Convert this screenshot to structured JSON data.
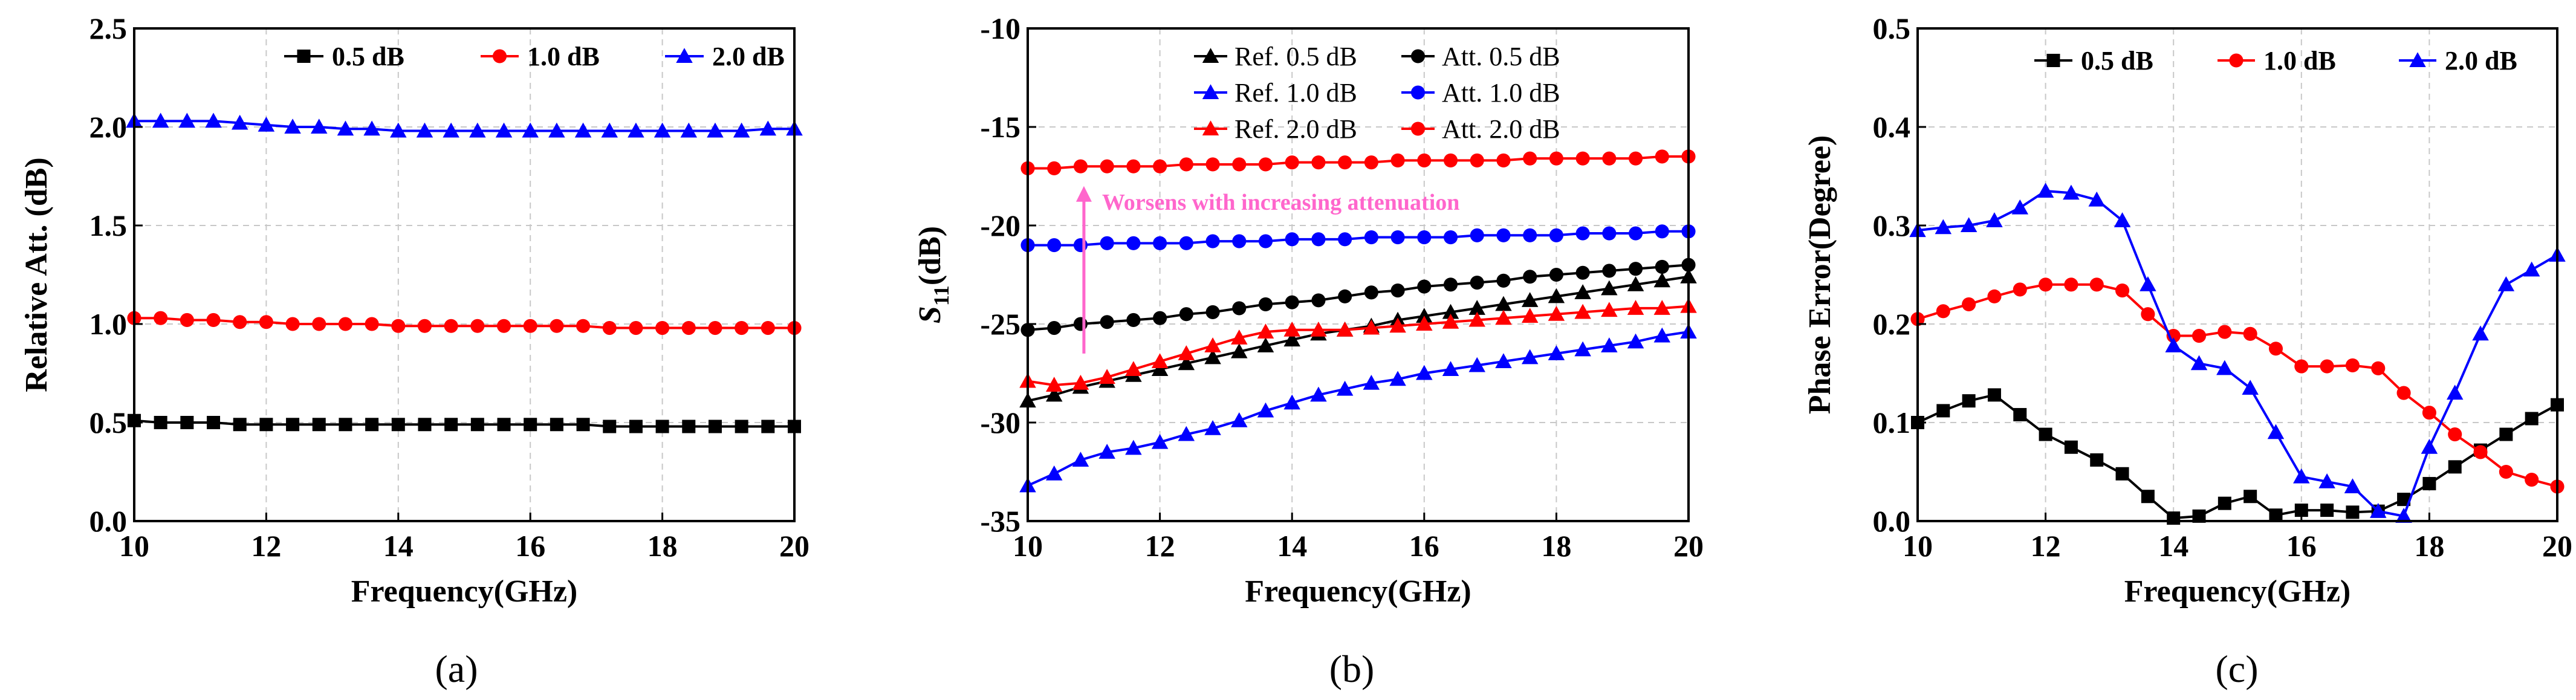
{
  "chart_data": [
    {
      "id": "a",
      "type": "line",
      "caption": "(a)",
      "title": "",
      "xlabel": "Frequency(GHz)",
      "ylabel": "Relative Att. (dB)",
      "xlim": [
        10,
        20
      ],
      "ylim": [
        0.0,
        2.5
      ],
      "xticks": [
        "10",
        "12",
        "14",
        "16",
        "18",
        "20"
      ],
      "yticks": [
        "0.0",
        "0.5",
        "1.0",
        "1.5",
        "2.0",
        "2.5"
      ],
      "grid": true,
      "legend": "top",
      "series": [
        {
          "name": "0.5 dB",
          "color": "#000000",
          "marker": "square",
          "x": [
            10,
            10.4,
            10.8,
            11.2,
            11.6,
            12,
            12.4,
            12.8,
            13.2,
            13.6,
            14,
            14.4,
            14.8,
            15.2,
            15.6,
            16,
            16.4,
            16.8,
            17.2,
            17.6,
            18,
            18.4,
            18.8,
            19.2,
            19.6,
            20
          ],
          "y": [
            0.51,
            0.5,
            0.5,
            0.5,
            0.49,
            0.49,
            0.49,
            0.49,
            0.49,
            0.49,
            0.49,
            0.49,
            0.49,
            0.49,
            0.49,
            0.49,
            0.49,
            0.49,
            0.48,
            0.48,
            0.48,
            0.48,
            0.48,
            0.48,
            0.48,
            0.48
          ]
        },
        {
          "name": "1.0 dB",
          "color": "#ff0000",
          "marker": "circle",
          "x": [
            10,
            10.4,
            10.8,
            11.2,
            11.6,
            12,
            12.4,
            12.8,
            13.2,
            13.6,
            14,
            14.4,
            14.8,
            15.2,
            15.6,
            16,
            16.4,
            16.8,
            17.2,
            17.6,
            18,
            18.4,
            18.8,
            19.2,
            19.6,
            20
          ],
          "y": [
            1.03,
            1.03,
            1.02,
            1.02,
            1.01,
            1.01,
            1.0,
            1.0,
            1.0,
            1.0,
            0.99,
            0.99,
            0.99,
            0.99,
            0.99,
            0.99,
            0.99,
            0.99,
            0.98,
            0.98,
            0.98,
            0.98,
            0.98,
            0.98,
            0.98,
            0.98
          ]
        },
        {
          "name": "2.0 dB",
          "color": "#0000ff",
          "marker": "triangle",
          "x": [
            10,
            10.4,
            10.8,
            11.2,
            11.6,
            12,
            12.4,
            12.8,
            13.2,
            13.6,
            14,
            14.4,
            14.8,
            15.2,
            15.6,
            16,
            16.4,
            16.8,
            17.2,
            17.6,
            18,
            18.4,
            18.8,
            19.2,
            19.6,
            20
          ],
          "y": [
            2.03,
            2.03,
            2.03,
            2.03,
            2.02,
            2.01,
            2.0,
            2.0,
            1.99,
            1.99,
            1.98,
            1.98,
            1.98,
            1.98,
            1.98,
            1.98,
            1.98,
            1.98,
            1.98,
            1.98,
            1.98,
            1.98,
            1.98,
            1.98,
            1.99,
            1.99
          ]
        }
      ]
    },
    {
      "id": "b",
      "type": "line",
      "caption": "(b)",
      "title": "",
      "xlabel": "Frequency(GHz)",
      "ylabel_main": "S",
      "ylabel_sub": "11",
      "ylabel_unit": "(dB)",
      "xlim": [
        10,
        20
      ],
      "ylim": [
        -35,
        -10
      ],
      "xticks": [
        "10",
        "12",
        "14",
        "16",
        "18",
        "20"
      ],
      "yticks": [
        "-35",
        "-30",
        "-25",
        "-20",
        "-15",
        "-10"
      ],
      "grid": true,
      "legend": "top-right",
      "annotation": {
        "text": "Worsens with increasing attenuation",
        "color": "#ff66cc",
        "x": 10.85,
        "y_from": -26.5,
        "y_to": -18.0
      },
      "series": [
        {
          "name": "Ref. 0.5 dB",
          "color": "#000000",
          "marker": "triangle",
          "x": [
            10,
            10.4,
            10.8,
            11.2,
            11.6,
            12,
            12.4,
            12.8,
            13.2,
            13.6,
            14,
            14.4,
            14.8,
            15.2,
            15.6,
            16,
            16.4,
            16.8,
            17.2,
            17.6,
            18,
            18.4,
            18.8,
            19.2,
            19.6,
            20
          ],
          "y": [
            -28.9,
            -28.6,
            -28.2,
            -27.9,
            -27.6,
            -27.3,
            -27.0,
            -26.7,
            -26.4,
            -26.1,
            -25.8,
            -25.5,
            -25.3,
            -25.1,
            -24.8,
            -24.6,
            -24.4,
            -24.2,
            -24.0,
            -23.8,
            -23.6,
            -23.4,
            -23.2,
            -23.0,
            -22.8,
            -22.6
          ]
        },
        {
          "name": "Att.  0.5 dB",
          "color": "#000000",
          "marker": "circle",
          "x": [
            10,
            10.4,
            10.8,
            11.2,
            11.6,
            12,
            12.4,
            12.8,
            13.2,
            13.6,
            14,
            14.4,
            14.8,
            15.2,
            15.6,
            16,
            16.4,
            16.8,
            17.2,
            17.6,
            18,
            18.4,
            18.8,
            19.2,
            19.6,
            20
          ],
          "y": [
            -25.3,
            -25.2,
            -25.0,
            -24.9,
            -24.8,
            -24.7,
            -24.5,
            -24.4,
            -24.2,
            -24.0,
            -23.9,
            -23.8,
            -23.6,
            -23.4,
            -23.3,
            -23.1,
            -23.0,
            -22.9,
            -22.8,
            -22.6,
            -22.5,
            -22.4,
            -22.3,
            -22.2,
            -22.1,
            -22.0
          ]
        },
        {
          "name": "Ref. 1.0 dB",
          "color": "#0000ff",
          "marker": "triangle",
          "x": [
            10,
            10.4,
            10.8,
            11.2,
            11.6,
            12,
            12.4,
            12.8,
            13.2,
            13.6,
            14,
            14.4,
            14.8,
            15.2,
            15.6,
            16,
            16.4,
            16.8,
            17.2,
            17.6,
            18,
            18.4,
            18.8,
            19.2,
            19.6,
            20
          ],
          "y": [
            -33.2,
            -32.6,
            -31.9,
            -31.5,
            -31.3,
            -31.0,
            -30.6,
            -30.3,
            -29.9,
            -29.4,
            -29.0,
            -28.6,
            -28.3,
            -28.0,
            -27.8,
            -27.5,
            -27.3,
            -27.1,
            -26.9,
            -26.7,
            -26.5,
            -26.3,
            -26.1,
            -25.9,
            -25.6,
            -25.4
          ]
        },
        {
          "name": "Att.  1.0 dB",
          "color": "#0000ff",
          "marker": "circle",
          "x": [
            10,
            10.4,
            10.8,
            11.2,
            11.6,
            12,
            12.4,
            12.8,
            13.2,
            13.6,
            14,
            14.4,
            14.8,
            15.2,
            15.6,
            16,
            16.4,
            16.8,
            17.2,
            17.6,
            18,
            18.4,
            18.8,
            19.2,
            19.6,
            20
          ],
          "y": [
            -21.0,
            -21.0,
            -21.0,
            -20.9,
            -20.9,
            -20.9,
            -20.9,
            -20.8,
            -20.8,
            -20.8,
            -20.7,
            -20.7,
            -20.7,
            -20.6,
            -20.6,
            -20.6,
            -20.6,
            -20.5,
            -20.5,
            -20.5,
            -20.5,
            -20.4,
            -20.4,
            -20.4,
            -20.3,
            -20.3
          ]
        },
        {
          "name": "Ref. 2.0 dB",
          "color": "#ff0000",
          "marker": "triangle",
          "x": [
            10,
            10.4,
            10.8,
            11.2,
            11.6,
            12,
            12.4,
            12.8,
            13.2,
            13.6,
            14,
            14.4,
            14.8,
            15.2,
            15.6,
            16,
            16.4,
            16.8,
            17.2,
            17.6,
            18,
            18.4,
            18.8,
            19.2,
            19.6,
            20
          ],
          "y": [
            -27.9,
            -28.1,
            -28.0,
            -27.7,
            -27.3,
            -26.9,
            -26.5,
            -26.1,
            -25.7,
            -25.4,
            -25.3,
            -25.3,
            -25.3,
            -25.2,
            -25.1,
            -25.0,
            -24.9,
            -24.8,
            -24.7,
            -24.6,
            -24.5,
            -24.4,
            -24.3,
            -24.2,
            -24.2,
            -24.1
          ]
        },
        {
          "name": "Att.  2.0 dB",
          "color": "#ff0000",
          "marker": "circle",
          "x": [
            10,
            10.4,
            10.8,
            11.2,
            11.6,
            12,
            12.4,
            12.8,
            13.2,
            13.6,
            14,
            14.4,
            14.8,
            15.2,
            15.6,
            16,
            16.4,
            16.8,
            17.2,
            17.6,
            18,
            18.4,
            18.8,
            19.2,
            19.6,
            20
          ],
          "y": [
            -17.1,
            -17.1,
            -17.0,
            -17.0,
            -17.0,
            -17.0,
            -16.9,
            -16.9,
            -16.9,
            -16.9,
            -16.8,
            -16.8,
            -16.8,
            -16.8,
            -16.7,
            -16.7,
            -16.7,
            -16.7,
            -16.7,
            -16.6,
            -16.6,
            -16.6,
            -16.6,
            -16.6,
            -16.5,
            -16.5
          ]
        }
      ]
    },
    {
      "id": "c",
      "type": "line",
      "caption": "(c)",
      "title": "",
      "xlabel": "Frequency(GHz)",
      "ylabel": "Phase Error(Degree)",
      "xlim": [
        10,
        20
      ],
      "ylim": [
        0.0,
        0.5
      ],
      "xticks": [
        "10",
        "12",
        "14",
        "16",
        "18",
        "20"
      ],
      "yticks": [
        "0.0",
        "0.1",
        "0.2",
        "0.3",
        "0.4",
        "0.5"
      ],
      "grid": true,
      "legend": "top",
      "series": [
        {
          "name": "0.5 dB",
          "color": "#000000",
          "marker": "square",
          "x": [
            10,
            10.4,
            10.8,
            11.2,
            11.6,
            12,
            12.4,
            12.8,
            13.2,
            13.6,
            14,
            14.4,
            14.8,
            15.2,
            15.6,
            16,
            16.4,
            16.8,
            17.2,
            17.6,
            18,
            18.4,
            18.8,
            19.2,
            19.6,
            20
          ],
          "y": [
            0.1,
            0.112,
            0.122,
            0.128,
            0.108,
            0.088,
            0.075,
            0.062,
            0.048,
            0.025,
            0.003,
            0.005,
            0.018,
            0.025,
            0.006,
            0.011,
            0.011,
            0.009,
            0.01,
            0.022,
            0.038,
            0.055,
            0.072,
            0.088,
            0.104,
            0.118
          ]
        },
        {
          "name": "1.0 dB",
          "color": "#ff0000",
          "marker": "circle",
          "x": [
            10,
            10.4,
            10.8,
            11.2,
            11.6,
            12,
            12.4,
            12.8,
            13.2,
            13.6,
            14,
            14.4,
            14.8,
            15.2,
            15.6,
            16,
            16.4,
            16.8,
            17.2,
            17.6,
            18,
            18.4,
            18.8,
            19.2,
            19.6,
            20
          ],
          "y": [
            0.205,
            0.213,
            0.22,
            0.228,
            0.235,
            0.24,
            0.24,
            0.24,
            0.234,
            0.21,
            0.188,
            0.188,
            0.192,
            0.19,
            0.175,
            0.157,
            0.157,
            0.158,
            0.155,
            0.13,
            0.11,
            0.088,
            0.07,
            0.05,
            0.042,
            0.035
          ]
        },
        {
          "name": "2.0 dB",
          "color": "#0000ff",
          "marker": "triangle",
          "x": [
            10,
            10.4,
            10.8,
            11.2,
            11.6,
            12,
            12.4,
            12.8,
            13.2,
            13.6,
            14,
            14.4,
            14.8,
            15.2,
            15.6,
            16,
            16.4,
            16.8,
            17.2,
            17.6,
            18,
            18.4,
            18.8,
            19.2,
            19.6,
            20
          ],
          "y": [
            0.295,
            0.298,
            0.3,
            0.305,
            0.318,
            0.335,
            0.333,
            0.326,
            0.305,
            0.24,
            0.178,
            0.16,
            0.155,
            0.135,
            0.09,
            0.045,
            0.04,
            0.035,
            0.01,
            0.005,
            0.075,
            0.13,
            0.19,
            0.24,
            0.255,
            0.27
          ]
        }
      ]
    }
  ]
}
